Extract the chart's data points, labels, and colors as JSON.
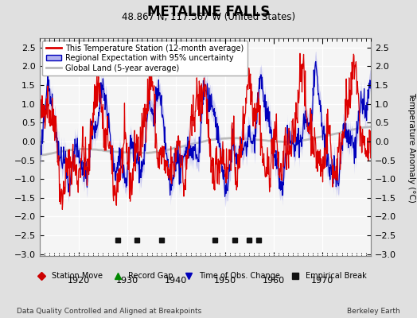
{
  "title": "METALINE FALLS",
  "subtitle": "48.867 N, 117.367 W (United States)",
  "ylabel": "Temperature Anomaly (°C)",
  "footer_left": "Data Quality Controlled and Aligned at Breakpoints",
  "footer_right": "Berkeley Earth",
  "xlim": [
    1912,
    1980
  ],
  "ylim": [
    -3.05,
    2.75
  ],
  "yticks": [
    -3,
    -2.5,
    -2,
    -1.5,
    -1,
    -0.5,
    0,
    0.5,
    1,
    1.5,
    2,
    2.5
  ],
  "xticks": [
    1920,
    1930,
    1940,
    1950,
    1960,
    1970
  ],
  "background_color": "#e0e0e0",
  "plot_bg_color": "#f5f5f5",
  "red_color": "#dd0000",
  "blue_color": "#0000bb",
  "blue_fill_color": "#b0b0ee",
  "gray_color": "#bbbbbb",
  "legend_entries": [
    "This Temperature Station (12-month average)",
    "Regional Expectation with 95% uncertainty",
    "Global Land (5-year average)"
  ],
  "marker_legend": [
    {
      "label": "Station Move",
      "color": "#cc0000",
      "marker": "D"
    },
    {
      "label": "Record Gap",
      "color": "#008800",
      "marker": "^"
    },
    {
      "label": "Time of Obs. Change",
      "color": "#0000bb",
      "marker": "v"
    },
    {
      "label": "Empirical Break",
      "color": "#111111",
      "marker": "s"
    }
  ],
  "empirical_breaks": [
    1928,
    1932,
    1937,
    1948,
    1952,
    1955,
    1957
  ],
  "seed": 42
}
